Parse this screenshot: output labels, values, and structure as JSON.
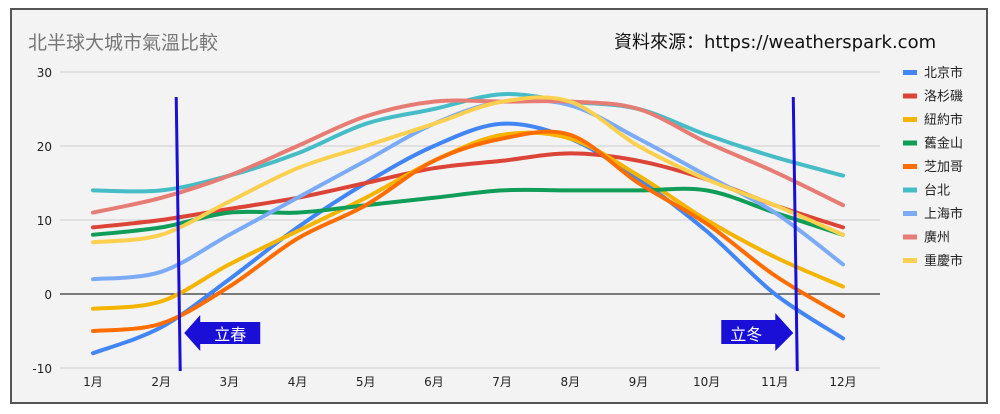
{
  "chart_data": {
    "type": "line",
    "title": "北半球大城市氣溫比較",
    "source_note": "資料來源：https://weatherspark.com",
    "categories": [
      "1月",
      "2月",
      "3月",
      "4月",
      "5月",
      "6月",
      "7月",
      "8月",
      "9月",
      "10月",
      "11月",
      "12月"
    ],
    "ylim": [
      -10,
      30
    ],
    "yticks": [
      30,
      20,
      10,
      0,
      -10
    ],
    "grid": true,
    "legend_position": "right",
    "series": [
      {
        "name": "北京市",
        "color": "#4285f4",
        "values": [
          -8,
          -4.5,
          2,
          9,
          15,
          20,
          23,
          21,
          15.5,
          8.5,
          0,
          -6
        ]
      },
      {
        "name": "洛杉磯",
        "color": "#db4437",
        "values": [
          9,
          10,
          11.5,
          13,
          15,
          17,
          18,
          19,
          18,
          15.5,
          12,
          9
        ]
      },
      {
        "name": "紐約市",
        "color": "#f4b400",
        "values": [
          -2,
          -1,
          4,
          8.5,
          13,
          18,
          21.5,
          21,
          16,
          10,
          5,
          1
        ]
      },
      {
        "name": "舊金山",
        "color": "#0f9d58",
        "values": [
          8,
          9,
          11,
          11,
          12,
          13,
          14,
          14,
          14,
          14,
          11,
          8
        ]
      },
      {
        "name": "芝加哥",
        "color": "#ff6d01",
        "values": [
          -5,
          -4,
          1,
          7.5,
          12,
          18,
          21,
          21.5,
          15,
          9.5,
          2.5,
          -3
        ]
      },
      {
        "name": "台北",
        "color": "#46bdc6",
        "values": [
          14,
          14,
          16,
          19,
          23,
          25,
          27,
          26,
          25,
          21.5,
          18.5,
          16
        ]
      },
      {
        "name": "上海市",
        "color": "#7baaf7",
        "values": [
          2,
          3,
          8,
          13,
          18,
          23,
          26,
          25.5,
          21,
          16,
          11,
          4
        ]
      },
      {
        "name": "廣州",
        "color": "#e67c73",
        "values": [
          11,
          13,
          16,
          20,
          24,
          26,
          26,
          26,
          25,
          20.5,
          16.5,
          12
        ]
      },
      {
        "name": "重慶市",
        "color": "#fcd04f",
        "values": [
          7,
          8,
          12.5,
          17,
          20,
          23,
          26,
          26,
          20,
          15.5,
          12,
          8
        ]
      }
    ],
    "annotations": [
      {
        "label": "立春",
        "month": 2.25,
        "arrow": "left",
        "color": "#1a0fd6"
      },
      {
        "label": "立冬",
        "month": 11.3,
        "arrow": "right",
        "color": "#1a0fd6"
      }
    ]
  }
}
